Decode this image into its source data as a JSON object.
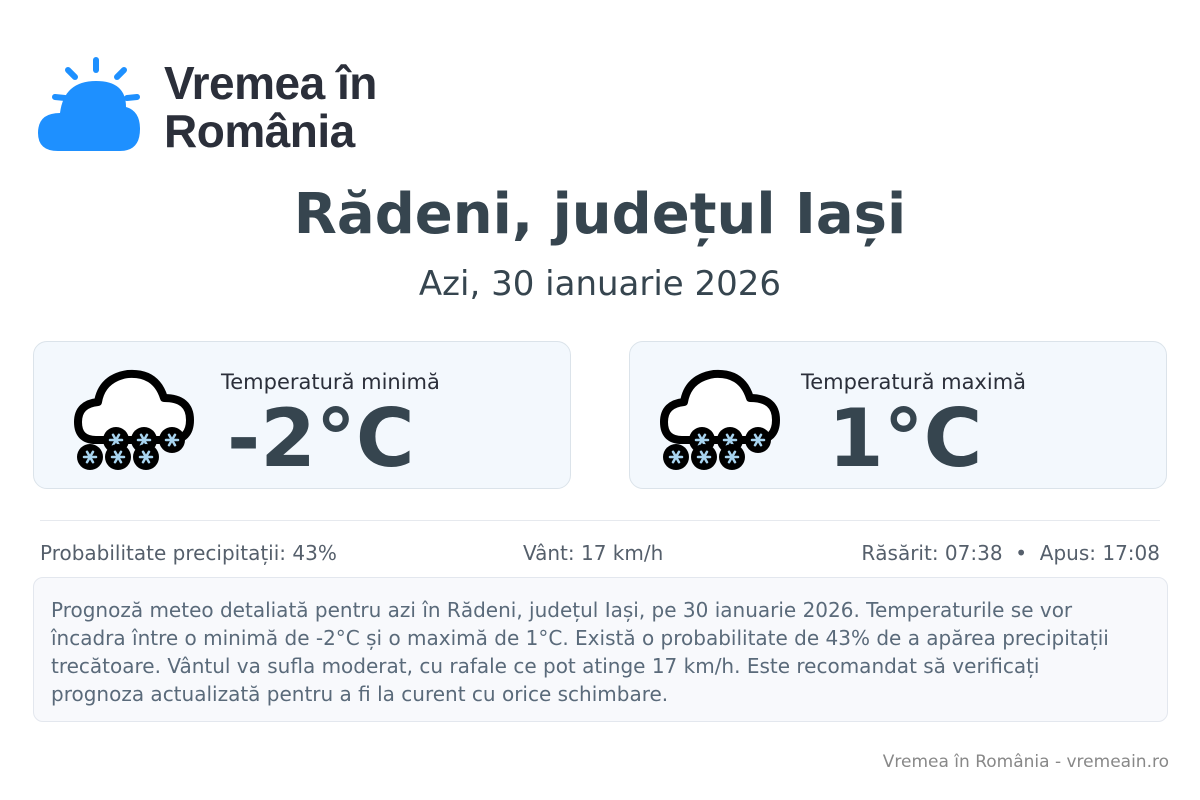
{
  "brand": {
    "name_line1": "Vremea în",
    "name_line2": "România",
    "color": "#1e90ff"
  },
  "header": {
    "title": "Rădeni, județul Iași",
    "subtitle": "Azi, 30 ianuarie 2026"
  },
  "cards": [
    {
      "label": "Temperatură minimă",
      "value": "-2°C",
      "icon": "snow-cloud-icon"
    },
    {
      "label": "Temperatură maximă",
      "value": "1°C",
      "icon": "snow-cloud-icon"
    }
  ],
  "stats": {
    "precip": "Probabilitate precipitații: 43%",
    "wind": "Vânt: 17 km/h",
    "sun": "Răsărit: 07:38  •  Apus: 17:08"
  },
  "description": "Prognoză meteo detaliată pentru azi în Rădeni, județul Iași, pe 30 ianuarie 2026. Temperaturile se vor încadra între o minimă de -2°C și o maximă de 1°C. Există o probabilitate de 43% de a apărea precipitații trecătoare. Vântul va sufla moderat, cu rafale ce pot atinge 17 km/h. Este recomandat să verificați prognoza actualizată pentru a fi la curent cu orice schimbare.",
  "footer": "Vremea în România - vremeain.ro"
}
